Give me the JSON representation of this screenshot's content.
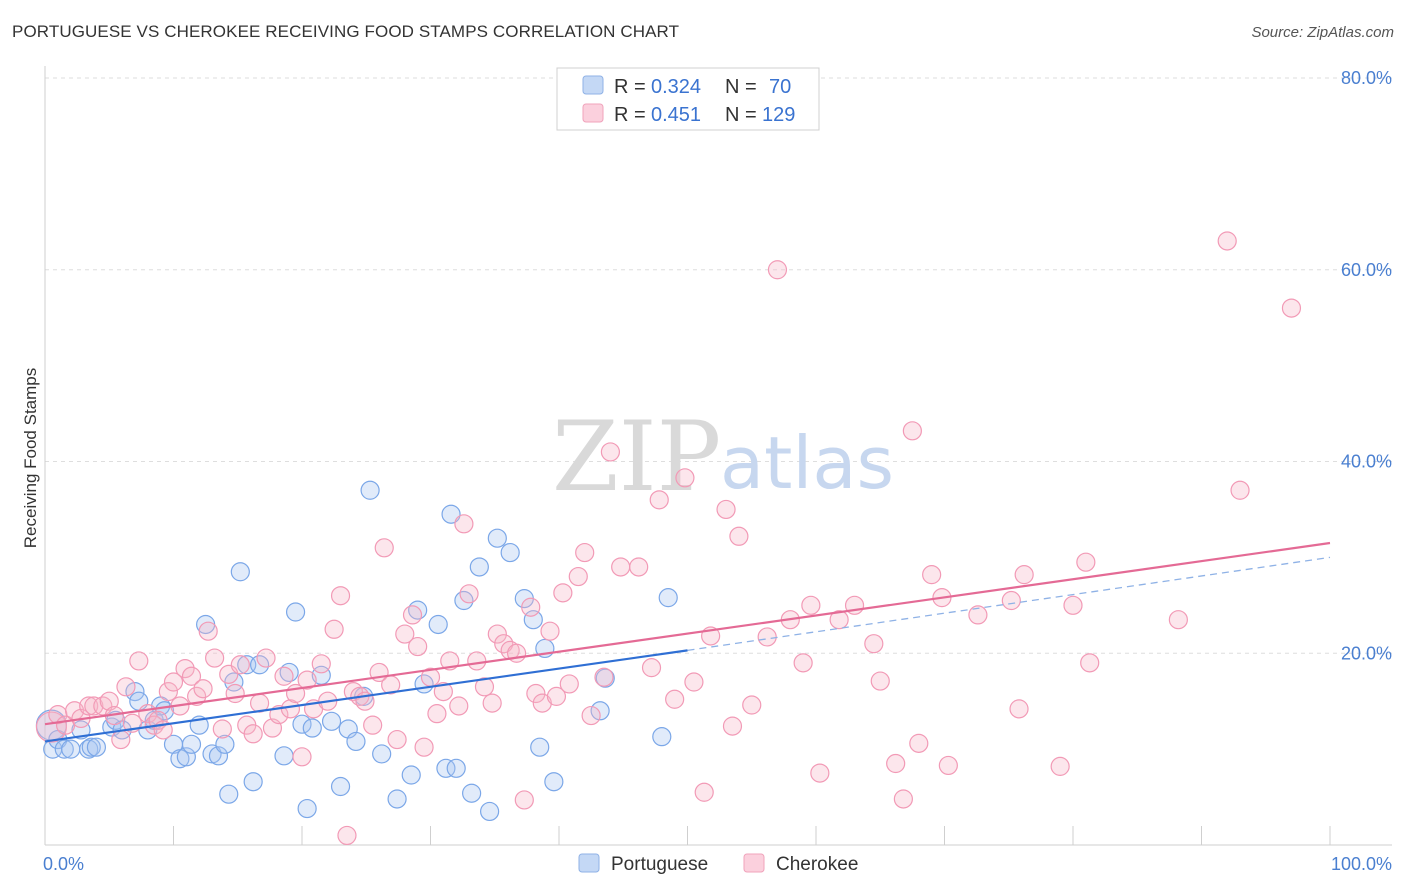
{
  "title": "PORTUGUESE VS CHEROKEE RECEIVING FOOD STAMPS CORRELATION CHART",
  "source": "Source: ZipAtlas.com",
  "watermark": {
    "zip": "ZIP",
    "atlas": "atlas"
  },
  "legend": {
    "rows": [
      {
        "r_label": "R = ",
        "r_value": "0.324",
        "n_label": "N = ",
        "n_value": "70",
        "color": "#a9c6f0"
      },
      {
        "r_label": "R = ",
        "r_value": "0.451",
        "n_label": "N = ",
        "n_value": "129",
        "color": "#f6b6c9"
      }
    ]
  },
  "bottom_legend": [
    {
      "name": "Portuguese",
      "color": "#a9c6f0"
    },
    {
      "name": "Cherokee",
      "color": "#f6b6c9"
    }
  ],
  "chart_data": {
    "type": "scatter",
    "xlabel": "",
    "ylabel": "Receiving Food Stamps",
    "xlim": [
      0,
      100
    ],
    "ylim": [
      0,
      80
    ],
    "x_tick_labels": [
      "0.0%",
      "100.0%"
    ],
    "y_ticks": [
      20,
      40,
      60,
      80
    ],
    "y_tick_labels": [
      "20.0%",
      "40.0%",
      "60.0%",
      "80.0%"
    ],
    "grid": true,
    "series": [
      {
        "name": "Portuguese",
        "color": "#7ba7e8",
        "trend": {
          "x0": 0,
          "y0": 10.8,
          "x1": 50,
          "y1": 20.3,
          "dash_to_x": 100,
          "dash_to_y": 30.0
        },
        "points": [
          [
            0.5,
            12.5
          ],
          [
            0.6,
            10
          ],
          [
            1,
            11
          ],
          [
            1.5,
            10
          ],
          [
            2,
            10
          ],
          [
            2.8,
            12
          ],
          [
            3.4,
            10
          ],
          [
            3.6,
            10.2
          ],
          [
            4,
            10.2
          ],
          [
            5.2,
            12.3
          ],
          [
            5.5,
            13
          ],
          [
            6,
            12
          ],
          [
            7,
            16
          ],
          [
            7.3,
            15
          ],
          [
            8,
            12
          ],
          [
            8.5,
            13
          ],
          [
            9,
            14.5
          ],
          [
            9.3,
            14
          ],
          [
            10,
            10.5
          ],
          [
            10.5,
            9
          ],
          [
            11,
            9.2
          ],
          [
            11.4,
            10.5
          ],
          [
            12,
            12.5
          ],
          [
            12.5,
            23
          ],
          [
            13,
            9.5
          ],
          [
            13.5,
            9.3
          ],
          [
            14,
            10.5
          ],
          [
            14.3,
            5.3
          ],
          [
            14.7,
            17
          ],
          [
            15.2,
            28.5
          ],
          [
            15.7,
            18.8
          ],
          [
            16.2,
            6.6
          ],
          [
            16.7,
            18.8
          ],
          [
            18.6,
            9.3
          ],
          [
            19,
            18
          ],
          [
            19.5,
            24.3
          ],
          [
            20,
            12.6
          ],
          [
            20.4,
            3.8
          ],
          [
            20.8,
            12.2
          ],
          [
            21.5,
            17.7
          ],
          [
            22.3,
            12.9
          ],
          [
            23,
            6.1
          ],
          [
            23.6,
            12.1
          ],
          [
            24.2,
            10.8
          ],
          [
            24.8,
            15.5
          ],
          [
            25.3,
            37
          ],
          [
            26.2,
            9.5
          ],
          [
            27.4,
            4.8
          ],
          [
            28.5,
            7.3
          ],
          [
            29,
            24.5
          ],
          [
            29.5,
            16.8
          ],
          [
            30.6,
            23
          ],
          [
            31.2,
            8
          ],
          [
            31.6,
            34.5
          ],
          [
            32,
            8
          ],
          [
            32.6,
            25.5
          ],
          [
            33.2,
            5.4
          ],
          [
            33.8,
            29
          ],
          [
            34.6,
            3.5
          ],
          [
            35.2,
            32
          ],
          [
            36.2,
            30.5
          ],
          [
            37.3,
            25.7
          ],
          [
            38,
            23.5
          ],
          [
            38.5,
            10.2
          ],
          [
            38.9,
            20.5
          ],
          [
            39.6,
            6.6
          ],
          [
            43.2,
            14
          ],
          [
            43.6,
            17.4
          ],
          [
            48,
            11.3
          ],
          [
            48.5,
            25.8
          ]
        ]
      },
      {
        "name": "Cherokee",
        "color": "#f29ab6",
        "trend": {
          "x0": 0,
          "y0": 12.6,
          "x1": 100,
          "y1": 31.5
        },
        "points": [
          [
            0.5,
            12.3
          ],
          [
            1,
            13.6
          ],
          [
            1.6,
            12.5
          ],
          [
            2.3,
            14
          ],
          [
            2.8,
            13.2
          ],
          [
            3.4,
            14.5
          ],
          [
            3.8,
            14.5
          ],
          [
            4.5,
            14.5
          ],
          [
            5,
            15
          ],
          [
            5.4,
            13.5
          ],
          [
            5.9,
            11
          ],
          [
            6.3,
            16.5
          ],
          [
            6.8,
            12.7
          ],
          [
            7.3,
            19.2
          ],
          [
            8,
            13.7
          ],
          [
            8.5,
            12.5
          ],
          [
            8.8,
            13
          ],
          [
            9.2,
            12
          ],
          [
            9.6,
            16
          ],
          [
            10,
            17
          ],
          [
            10.5,
            14.5
          ],
          [
            10.9,
            18.4
          ],
          [
            11.4,
            17.6
          ],
          [
            11.8,
            15.5
          ],
          [
            12.3,
            16.3
          ],
          [
            12.7,
            22.3
          ],
          [
            13.2,
            19.5
          ],
          [
            13.8,
            12.1
          ],
          [
            14.3,
            17.8
          ],
          [
            14.8,
            15.8
          ],
          [
            15.2,
            18.8
          ],
          [
            15.7,
            12.5
          ],
          [
            16.2,
            11.6
          ],
          [
            16.7,
            14.8
          ],
          [
            17.2,
            19.5
          ],
          [
            17.7,
            12.2
          ],
          [
            18.2,
            13.6
          ],
          [
            18.6,
            17.6
          ],
          [
            19.1,
            14.2
          ],
          [
            19.5,
            15.8
          ],
          [
            20,
            9.2
          ],
          [
            20.4,
            17.2
          ],
          [
            20.9,
            14.2
          ],
          [
            21.5,
            18.9
          ],
          [
            22,
            15
          ],
          [
            22.5,
            22.5
          ],
          [
            23,
            26
          ],
          [
            23.5,
            1
          ],
          [
            24,
            16
          ],
          [
            24.5,
            15.5
          ],
          [
            24.9,
            15
          ],
          [
            25.5,
            12.5
          ],
          [
            26,
            18
          ],
          [
            26.4,
            31
          ],
          [
            26.9,
            16.7
          ],
          [
            27.4,
            11
          ],
          [
            28,
            22
          ],
          [
            28.6,
            24
          ],
          [
            29,
            20.7
          ],
          [
            29.5,
            10.2
          ],
          [
            30,
            17.5
          ],
          [
            30.5,
            13.7
          ],
          [
            31,
            16
          ],
          [
            31.5,
            19.2
          ],
          [
            32.2,
            14.5
          ],
          [
            32.6,
            33.5
          ],
          [
            33,
            26.2
          ],
          [
            33.6,
            19.2
          ],
          [
            34.2,
            16.5
          ],
          [
            34.8,
            14.8
          ],
          [
            35.2,
            22
          ],
          [
            35.7,
            21
          ],
          [
            36.2,
            20.3
          ],
          [
            36.7,
            20
          ],
          [
            37.3,
            4.7
          ],
          [
            37.8,
            24.8
          ],
          [
            38.2,
            15.8
          ],
          [
            38.7,
            14.8
          ],
          [
            39.3,
            22.3
          ],
          [
            39.8,
            15.5
          ],
          [
            40.3,
            26.3
          ],
          [
            40.8,
            16.8
          ],
          [
            41.5,
            28
          ],
          [
            42,
            30.5
          ],
          [
            42.5,
            13.5
          ],
          [
            43.5,
            17.5
          ],
          [
            44,
            41
          ],
          [
            44.8,
            29
          ],
          [
            46.2,
            29
          ],
          [
            47.2,
            18.5
          ],
          [
            47.8,
            36
          ],
          [
            49,
            15.2
          ],
          [
            49.8,
            38.3
          ],
          [
            50.5,
            17
          ],
          [
            51.3,
            5.5
          ],
          [
            51.8,
            21.8
          ],
          [
            53,
            35
          ],
          [
            53.5,
            12.4
          ],
          [
            54,
            32.2
          ],
          [
            55,
            14.6
          ],
          [
            56.2,
            21.7
          ],
          [
            57,
            60
          ],
          [
            58,
            23.5
          ],
          [
            59,
            19
          ],
          [
            59.6,
            25
          ],
          [
            60.3,
            7.5
          ],
          [
            61.8,
            23.5
          ],
          [
            63,
            25
          ],
          [
            64.5,
            21
          ],
          [
            65,
            17.1
          ],
          [
            66.2,
            8.5
          ],
          [
            66.8,
            4.8
          ],
          [
            67.5,
            43.2
          ],
          [
            68,
            10.6
          ],
          [
            69,
            28.2
          ],
          [
            69.8,
            25.8
          ],
          [
            70.3,
            8.3
          ],
          [
            72.6,
            24
          ],
          [
            75.2,
            25.5
          ],
          [
            75.8,
            14.2
          ],
          [
            76.2,
            28.2
          ],
          [
            79,
            8.2
          ],
          [
            80,
            25
          ],
          [
            81,
            29.5
          ],
          [
            81.3,
            19
          ],
          [
            88.2,
            23.5
          ],
          [
            92,
            63
          ],
          [
            93,
            37
          ],
          [
            97,
            56
          ]
        ]
      }
    ]
  }
}
